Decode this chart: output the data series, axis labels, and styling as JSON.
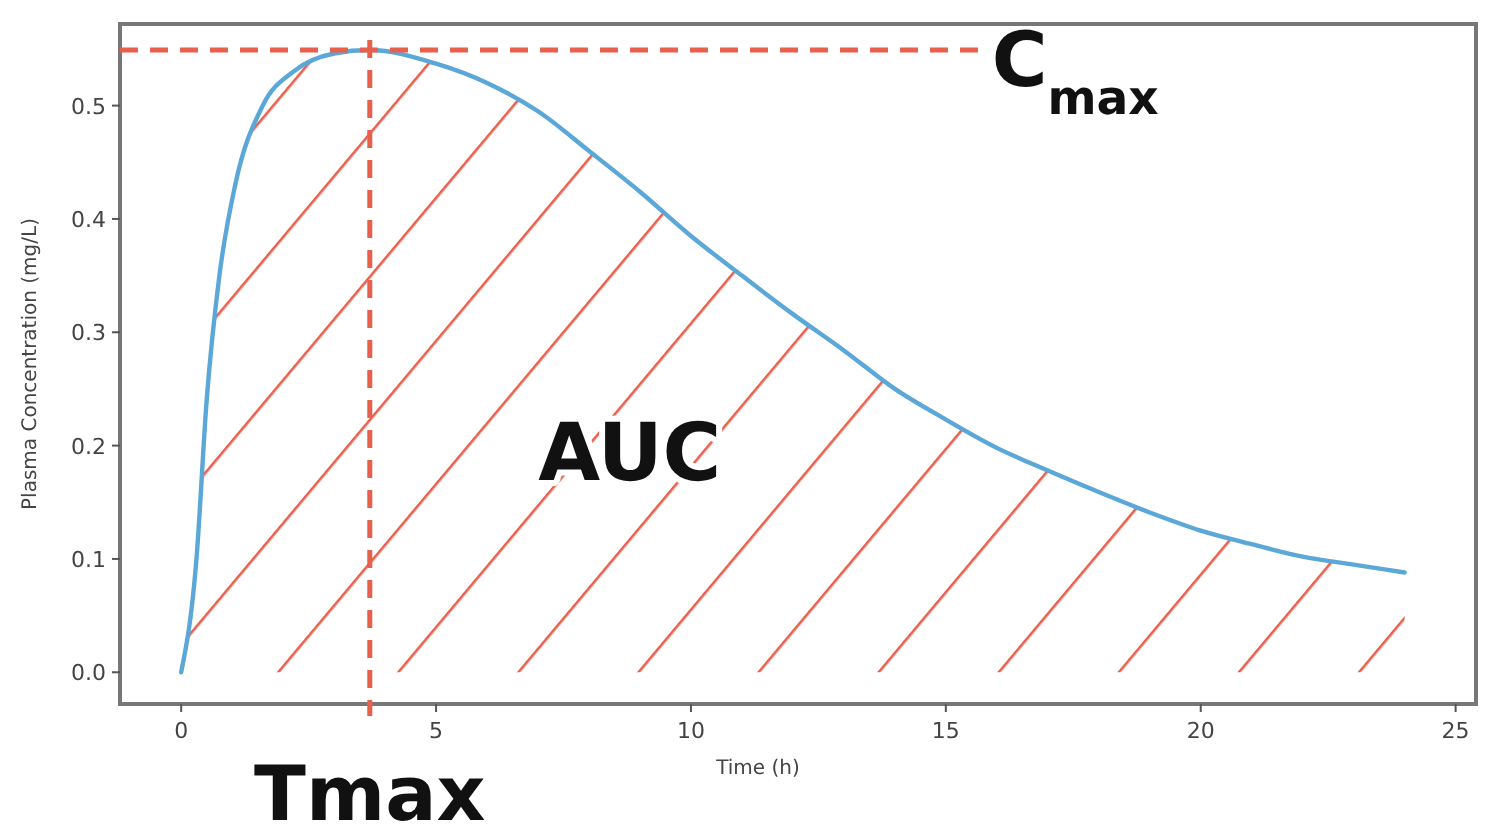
{
  "chart_data": {
    "type": "area",
    "xlabel": "Time (h)",
    "ylabel": "Plasma Concentration (mg/L)",
    "xlim": [
      -1.2,
      25.4
    ],
    "xticks": [
      0,
      5,
      10,
      15,
      20,
      25
    ],
    "ylim": [
      -0.028,
      0.572
    ],
    "yticks": [
      {
        "value": 0,
        "label": "0.0"
      },
      0.1,
      0.2,
      0.3,
      0.4,
      0.5
    ],
    "grid": false,
    "series": [
      {
        "color": "#5aa7d8",
        "x": [
          0,
          0.3,
          0.5,
          0.75,
          1.06,
          1.6,
          2.2,
          3,
          3.7,
          5,
          6,
          7,
          8,
          9,
          10,
          11,
          12,
          13,
          14,
          15,
          16,
          17,
          18,
          19,
          20,
          21,
          22,
          23,
          24
        ],
        "values": [
          0,
          0.1,
          0.24,
          0.35,
          0.43,
          0.5,
          0.53,
          0.546,
          0.549,
          0.537,
          0.52,
          0.495,
          0.46,
          0.424,
          0.385,
          0.35,
          0.316,
          0.284,
          0.25,
          0.223,
          0.198,
          0.178,
          0.159,
          0.141,
          0.125,
          0.113,
          0.102,
          0.095,
          0.088
        ]
      }
    ],
    "ref_lines": [
      {
        "axis": "y",
        "value": 0.549,
        "label": "C$_{max}$",
        "color": "#e8604c",
        "line_style": "dashed"
      },
      {
        "axis": "x",
        "value": 3.7,
        "label": "Tmax",
        "color": "#e8604c",
        "line_style": "dashed"
      }
    ],
    "annotations": [
      "AUC"
    ]
  }
}
